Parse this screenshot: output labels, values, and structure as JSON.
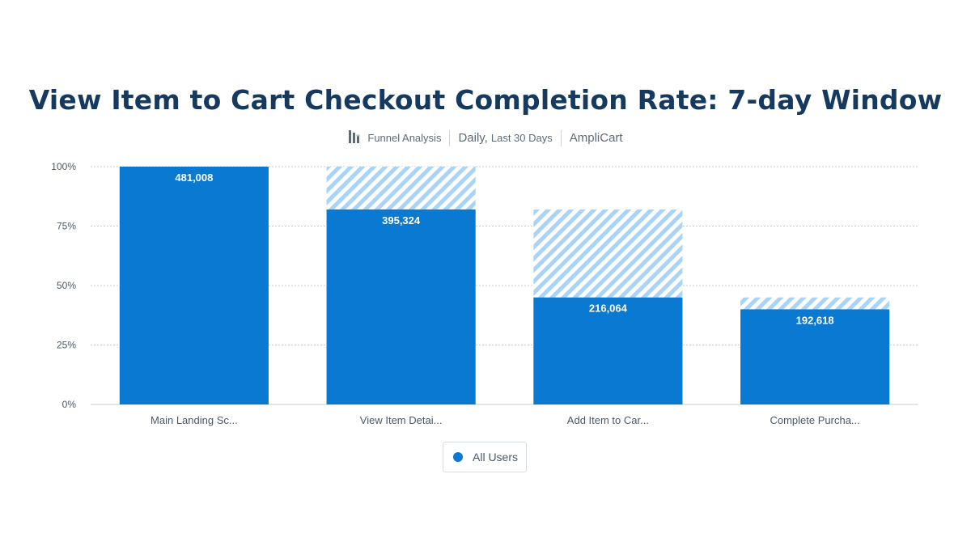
{
  "title": "View Item to Cart Checkout Completion Rate: 7-day Window",
  "subtitle": {
    "chart_kind": "Funnel Analysis",
    "interval": "Daily,",
    "range": "Last 30 Days",
    "project": "AmpliCart",
    "icon": "funnel-chart-icon"
  },
  "legend": {
    "label": "All Users",
    "color": "#0a79d1"
  },
  "colors": {
    "bar": "#0a79d1",
    "hatch": "#a9d4f5",
    "grid": "#c7cdd3",
    "axis_text": "#4a5968"
  },
  "chart_data": {
    "type": "bar",
    "categories": [
      "Main Landing Sc...",
      "View Item Detai...",
      "Add Item to Car...",
      "Complete Purcha..."
    ],
    "series": [
      {
        "name": "All Users",
        "values": [
          100,
          82,
          45,
          40
        ]
      }
    ],
    "value_labels": [
      "481,008",
      "395,324",
      "216,064",
      "192,618"
    ],
    "previous_step_values": [
      null,
      100,
      82,
      45
    ],
    "ylim": [
      0,
      100
    ],
    "yticks": [
      0,
      25,
      50,
      75,
      100
    ],
    "ytick_labels": [
      "0%",
      "25%",
      "50%",
      "75%",
      "100%"
    ],
    "grid": true,
    "legend_position": "bottom"
  }
}
